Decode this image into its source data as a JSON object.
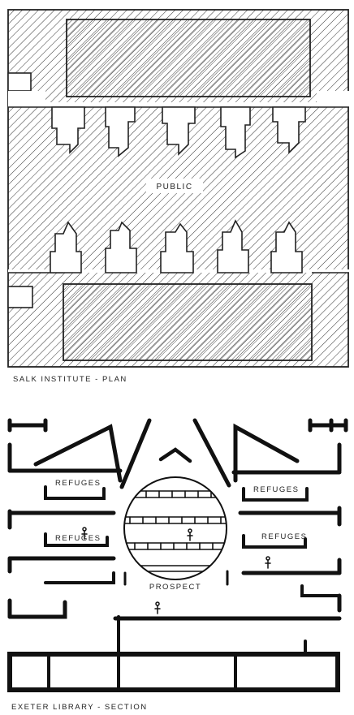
{
  "plan": {
    "center_label": "PUBLIC",
    "caption": "SALK INSTITUTE - PLAN"
  },
  "section": {
    "refuge_label": "REFUGES",
    "prospect_label": "PROSPECT",
    "caption": "EXETER LIBRARY - SECTION"
  },
  "colors": {
    "ink": "#1a1a1a",
    "paper": "#ffffff"
  }
}
